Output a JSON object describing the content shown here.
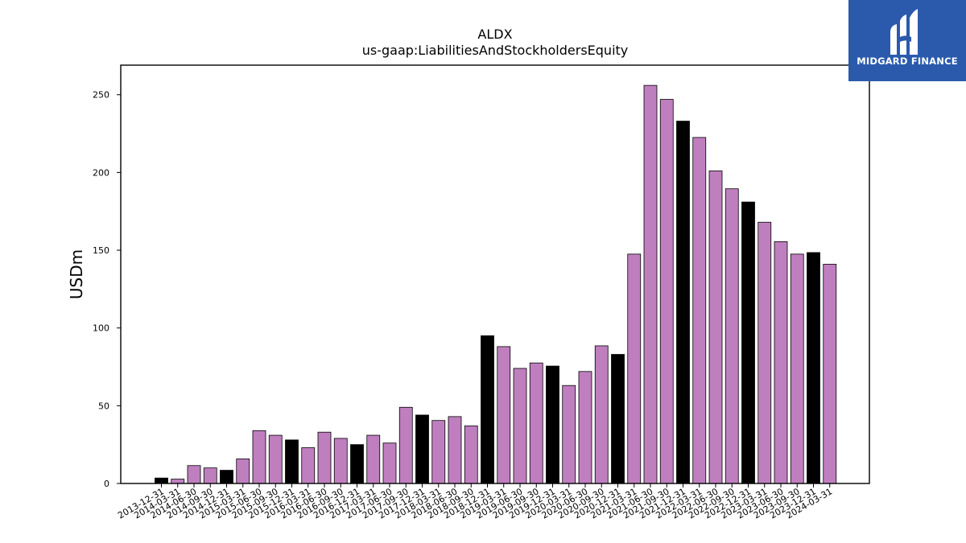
{
  "brand": {
    "name": "MIDGARD FINANCE",
    "logo_icon": "midgard-m-logo-icon",
    "background": "#2b5aad"
  },
  "colors": {
    "highlight": "#000000",
    "default": "#bf7fbf",
    "edge": "#000000"
  },
  "chart_data": {
    "type": "bar",
    "title": "ALDX",
    "subtitle": "us-gaap:LiabilitiesAndStockholdersEquity",
    "xlabel": "",
    "ylabel": "USDm",
    "ylim": [
      0,
      269
    ],
    "yticks": [
      0,
      50,
      100,
      150,
      200,
      250
    ],
    "grid": false,
    "categories": [
      "2013-12-31",
      "2014-03-31",
      "2014-06-30",
      "2014-09-30",
      "2014-12-31",
      "2015-03-31",
      "2015-06-30",
      "2015-09-30",
      "2015-12-31",
      "2016-03-31",
      "2016-06-30",
      "2016-09-30",
      "2016-12-31",
      "2017-03-31",
      "2017-06-30",
      "2017-09-30",
      "2017-12-31",
      "2018-03-31",
      "2018-06-30",
      "2018-09-30",
      "2018-12-31",
      "2019-03-31",
      "2019-06-30",
      "2019-09-30",
      "2019-12-31",
      "2020-03-31",
      "2020-06-30",
      "2020-09-30",
      "2020-12-31",
      "2021-03-31",
      "2021-06-30",
      "2021-09-30",
      "2021-12-31",
      "2022-03-31",
      "2022-06-30",
      "2022-09-30",
      "2022-12-31",
      "2023-03-31",
      "2023-06-30",
      "2023-09-30",
      "2023-12-31",
      "2024-03-31"
    ],
    "values": [
      3.5,
      2.8,
      11.5,
      10,
      8.5,
      15.8,
      34,
      31,
      28,
      23,
      33,
      29,
      25,
      31,
      26,
      49,
      44,
      40.5,
      43,
      37,
      95,
      88,
      74,
      77.5,
      75.5,
      63,
      72,
      88.5,
      83,
      147.5,
      256,
      247,
      233,
      222.5,
      201,
      189.5,
      181,
      168,
      155.5,
      147.5,
      148.5,
      141
    ],
    "highlighted": [
      true,
      false,
      false,
      false,
      true,
      false,
      false,
      false,
      true,
      false,
      false,
      false,
      true,
      false,
      false,
      false,
      true,
      false,
      false,
      false,
      true,
      false,
      false,
      false,
      true,
      false,
      false,
      false,
      true,
      false,
      false,
      false,
      true,
      false,
      false,
      false,
      true,
      false,
      false,
      false,
      true,
      false
    ]
  }
}
